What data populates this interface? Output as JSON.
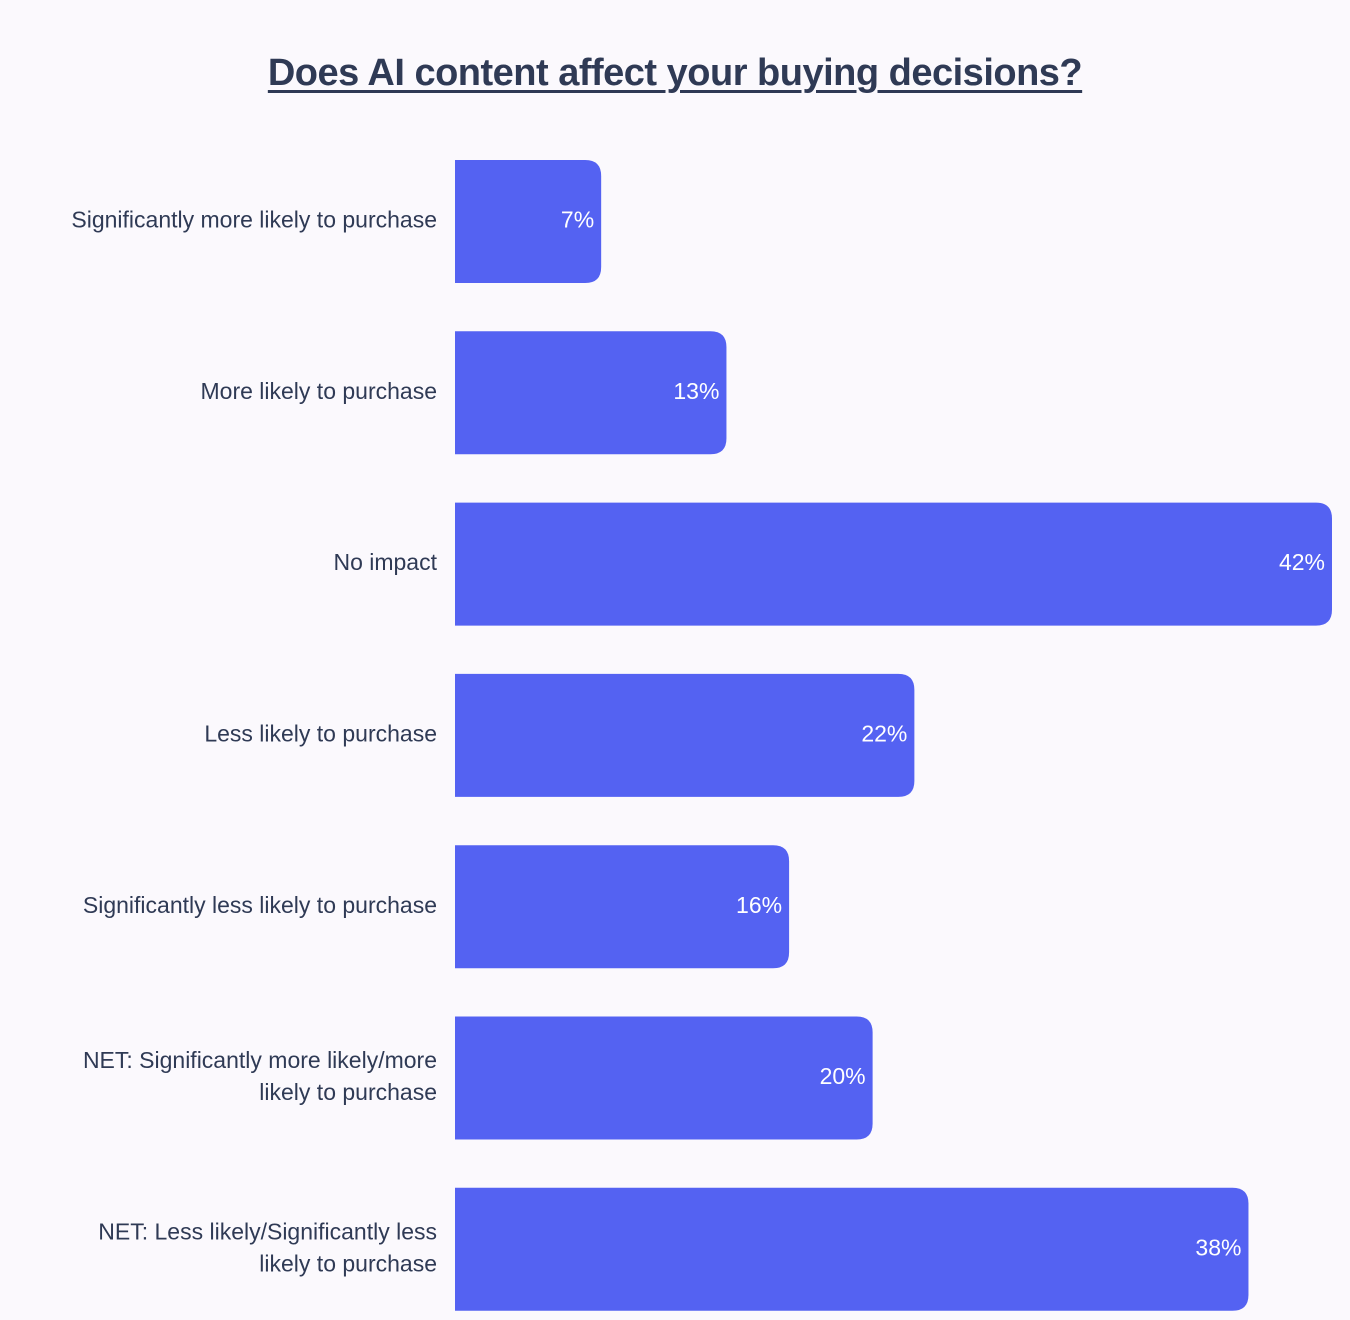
{
  "chart_data": {
    "type": "bar",
    "orientation": "horizontal",
    "title": "Does AI content affect your buying decisions?",
    "categories": [
      "Significantly more likely to purchase",
      "More likely to purchase",
      "No impact",
      "Less likely to purchase",
      "Significantly less likely to purchase",
      "NET: Significantly more likely/more likely to purchase",
      "NET: Less likely/Significantly less likely to purchase"
    ],
    "category_lines": [
      [
        "Significantly more likely to purchase"
      ],
      [
        "More likely to purchase"
      ],
      [
        "No impact"
      ],
      [
        "Less likely to purchase"
      ],
      [
        "Significantly less likely to purchase"
      ],
      [
        "NET: Significantly more likely/more",
        "likely to purchase"
      ],
      [
        "NET: Less likely/Significantly less",
        "likely to purchase"
      ]
    ],
    "values": [
      7,
      13,
      42,
      22,
      16,
      20,
      38
    ],
    "value_labels": [
      "7%",
      "13%",
      "42%",
      "22%",
      "16%",
      "20%",
      "38%"
    ],
    "unit": "%",
    "xlim": [
      0,
      42
    ],
    "grid": false,
    "bar_color": "#5462f2"
  }
}
